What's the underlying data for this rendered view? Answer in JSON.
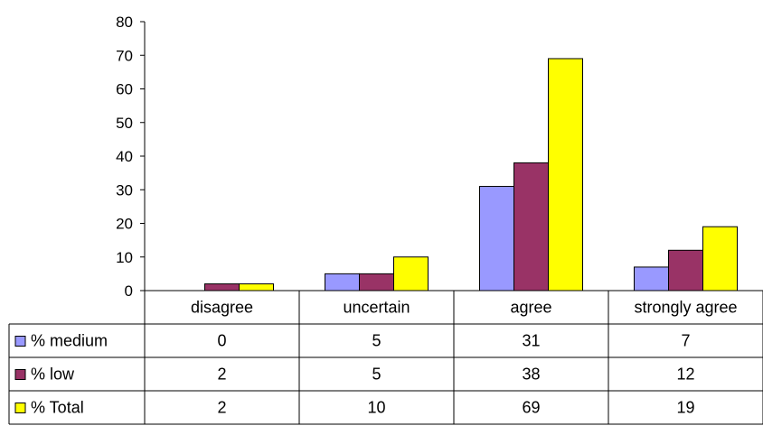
{
  "chart_data": {
    "type": "bar",
    "categories": [
      "disagree",
      "uncertain",
      "agree",
      "strongly agree"
    ],
    "series": [
      {
        "name": "% medium",
        "values": [
          0,
          5,
          31,
          7
        ],
        "color": "#9999ff"
      },
      {
        "name": "% low",
        "values": [
          2,
          5,
          38,
          12
        ],
        "color": "#993366"
      },
      {
        "name": "% Total",
        "values": [
          2,
          10,
          69,
          19
        ],
        "color": "#ffff00"
      }
    ],
    "ylim": [
      0,
      80
    ],
    "yticks": [
      "0",
      "10",
      "20",
      "30",
      "40",
      "50",
      "60",
      "70",
      "80"
    ],
    "data_table": true,
    "grid": false
  }
}
